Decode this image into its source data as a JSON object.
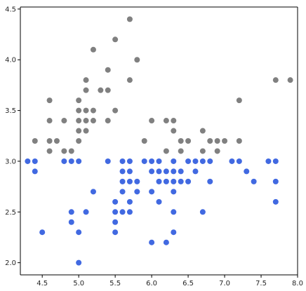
{
  "chart_data": {
    "type": "scatter",
    "title": "",
    "xlabel": "",
    "ylabel": "",
    "xlim": [
      4.2,
      8.0
    ],
    "ylim": [
      1.88,
      4.52
    ],
    "x_ticks": [
      "4.5",
      "5.0",
      "5.5",
      "6.0",
      "6.5",
      "7.0",
      "7.5",
      "8.0"
    ],
    "y_ticks": [
      "2.0",
      "2.5",
      "3.0",
      "3.5",
      "4.0",
      "4.5"
    ],
    "grid": false,
    "legend": "none",
    "series": [
      {
        "color": "#808080",
        "points": [
          [
            5.7,
            4.4
          ],
          [
            5.5,
            4.2
          ],
          [
            5.2,
            4.1
          ],
          [
            5.8,
            4.0
          ],
          [
            5.4,
            3.9
          ],
          [
            5.7,
            3.8
          ],
          [
            5.1,
            3.8
          ],
          [
            7.7,
            3.8
          ],
          [
            7.9,
            3.8
          ],
          [
            5.1,
            3.7
          ],
          [
            5.3,
            3.7
          ],
          [
            5.4,
            3.7
          ],
          [
            4.6,
            3.6
          ],
          [
            5.0,
            3.6
          ],
          [
            7.2,
            3.6
          ],
          [
            5.0,
            3.5
          ],
          [
            5.1,
            3.5
          ],
          [
            5.2,
            3.5
          ],
          [
            5.5,
            3.5
          ],
          [
            4.6,
            3.4
          ],
          [
            4.8,
            3.4
          ],
          [
            5.0,
            3.4
          ],
          [
            5.1,
            3.4
          ],
          [
            5.2,
            3.4
          ],
          [
            5.4,
            3.4
          ],
          [
            6.0,
            3.4
          ],
          [
            6.2,
            3.4
          ],
          [
            6.3,
            3.4
          ],
          [
            4.7,
            3.2
          ],
          [
            4.4,
            3.2
          ],
          [
            4.6,
            3.2
          ],
          [
            5.0,
            3.3
          ],
          [
            5.1,
            3.3
          ],
          [
            6.3,
            3.3
          ],
          [
            6.7,
            3.3
          ],
          [
            5.9,
            3.2
          ],
          [
            6.4,
            3.2
          ],
          [
            6.5,
            3.2
          ],
          [
            6.8,
            3.2
          ],
          [
            6.9,
            3.2
          ],
          [
            7.0,
            3.2
          ],
          [
            7.2,
            3.2
          ],
          [
            4.6,
            3.1
          ],
          [
            4.8,
            3.1
          ],
          [
            4.9,
            3.1
          ],
          [
            5.0,
            3.2
          ],
          [
            6.4,
            3.1
          ],
          [
            6.7,
            3.1
          ],
          [
            6.9,
            3.1
          ],
          [
            6.2,
            3.1
          ]
        ]
      },
      {
        "color": "#4169e1",
        "points": [
          [
            4.3,
            3.0
          ],
          [
            4.4,
            3.0
          ],
          [
            4.4,
            2.9
          ],
          [
            4.5,
            2.3
          ],
          [
            4.8,
            3.0
          ],
          [
            4.9,
            3.0
          ],
          [
            4.9,
            2.5
          ],
          [
            4.9,
            2.4
          ],
          [
            5.0,
            3.0
          ],
          [
            5.0,
            2.3
          ],
          [
            5.0,
            2.0
          ],
          [
            5.1,
            2.5
          ],
          [
            5.2,
            2.7
          ],
          [
            5.4,
            3.0
          ],
          [
            5.5,
            2.6
          ],
          [
            5.5,
            2.5
          ],
          [
            5.5,
            2.4
          ],
          [
            5.5,
            2.3
          ],
          [
            5.6,
            3.0
          ],
          [
            5.6,
            2.9
          ],
          [
            5.6,
            2.8
          ],
          [
            5.6,
            2.7
          ],
          [
            5.6,
            2.5
          ],
          [
            5.7,
            3.0
          ],
          [
            5.7,
            2.9
          ],
          [
            5.7,
            2.8
          ],
          [
            5.7,
            2.6
          ],
          [
            5.7,
            2.5
          ],
          [
            5.8,
            2.8
          ],
          [
            5.8,
            2.7
          ],
          [
            5.9,
            3.0
          ],
          [
            6.0,
            3.0
          ],
          [
            6.0,
            2.9
          ],
          [
            6.0,
            2.7
          ],
          [
            6.0,
            2.2
          ],
          [
            6.1,
            3.0
          ],
          [
            6.1,
            2.9
          ],
          [
            6.1,
            2.8
          ],
          [
            6.1,
            2.6
          ],
          [
            6.2,
            2.9
          ],
          [
            6.2,
            2.8
          ],
          [
            6.2,
            2.2
          ],
          [
            6.3,
            3.0
          ],
          [
            6.3,
            2.9
          ],
          [
            6.3,
            2.8
          ],
          [
            6.3,
            2.7
          ],
          [
            6.3,
            2.5
          ],
          [
            6.3,
            2.3
          ],
          [
            6.4,
            2.9
          ],
          [
            6.4,
            2.8
          ],
          [
            6.5,
            3.0
          ],
          [
            6.5,
            2.8
          ],
          [
            6.6,
            3.0
          ],
          [
            6.6,
            2.9
          ],
          [
            6.7,
            3.0
          ],
          [
            6.7,
            2.5
          ],
          [
            6.8,
            3.0
          ],
          [
            6.8,
            2.8
          ],
          [
            7.1,
            3.0
          ],
          [
            7.2,
            3.0
          ],
          [
            7.3,
            2.9
          ],
          [
            7.4,
            2.8
          ],
          [
            7.6,
            3.0
          ],
          [
            7.7,
            3.0
          ],
          [
            7.7,
            2.8
          ],
          [
            7.7,
            2.6
          ]
        ]
      }
    ]
  }
}
